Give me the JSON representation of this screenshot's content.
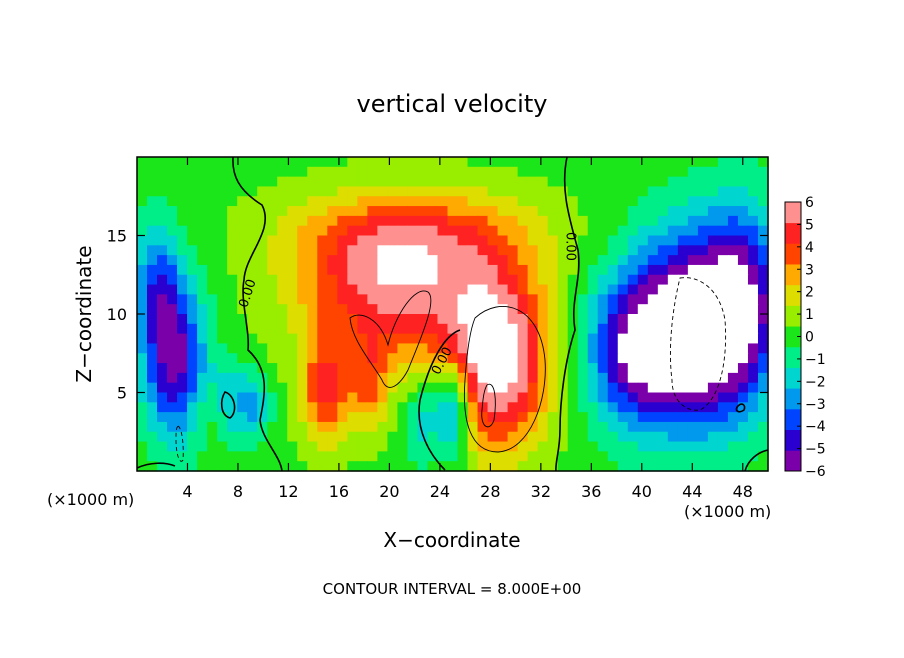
{
  "chart_data": {
    "type": "heatmap",
    "title": "vertical velocity",
    "xlabel": "X−coordinate",
    "ylabel": "Z−coordinate",
    "x_unit_left": "(×1000 m)",
    "x_unit_right": "(×1000 m)",
    "footer": "CONTOUR INTERVAL = 8.000E+00",
    "xlim": [
      0,
      50
    ],
    "ylim": [
      0,
      20
    ],
    "x_ticks": [
      4,
      8,
      12,
      16,
      20,
      24,
      28,
      32,
      36,
      40,
      44,
      48
    ],
    "y_ticks": [
      5,
      10,
      15
    ],
    "colorbar": {
      "range": [
        -6,
        6
      ],
      "tick_values": [
        6,
        5,
        4,
        3,
        2,
        1,
        0,
        -1,
        -2,
        -3,
        -4,
        -5,
        -6
      ],
      "tick_labels": [
        "6",
        "5",
        "4",
        "3",
        "2",
        "1",
        "0",
        "−1",
        "−2",
        "−3",
        "−4",
        "−5",
        "−6"
      ]
    },
    "contour_labels": [
      {
        "text": "0.00",
        "x": 8.8,
        "y": 11.3,
        "angle": -72
      },
      {
        "text": "0.00",
        "x": 34.3,
        "y": 14.3,
        "angle": 90
      },
      {
        "text": "0.00",
        "x": 24.2,
        "y": 7.0,
        "angle": -62
      }
    ],
    "field_features": [
      {
        "kind": "updraft",
        "x": 20.5,
        "y": 11.5,
        "sx": 7.5,
        "sy": 4.5,
        "amp": 5.5
      },
      {
        "kind": "updraft",
        "x": 28.5,
        "y": 7.0,
        "sx": 4.0,
        "sy": 5.5,
        "amp": 7.5
      },
      {
        "kind": "updraft",
        "x": 22.0,
        "y": 15.0,
        "sx": 10.0,
        "sy": 3.0,
        "amp": 3.0
      },
      {
        "kind": "updraft",
        "x": 15.0,
        "y": 5.0,
        "sx": 2.0,
        "sy": 3.5,
        "amp": 4.5
      },
      {
        "kind": "updraft",
        "x": 18.5,
        "y": 5.5,
        "sx": 1.5,
        "sy": 3.0,
        "amp": 3.0
      },
      {
        "kind": "downdraft",
        "x": 25.0,
        "y": 4.0,
        "sx": 1.5,
        "sy": 3.0,
        "amp": -5.0
      },
      {
        "kind": "downdraft",
        "x": 22.5,
        "y": 3.0,
        "sx": 1.2,
        "sy": 2.5,
        "amp": -2.5
      },
      {
        "kind": "downdraft",
        "x": 44.0,
        "y": 9.0,
        "sx": 5.0,
        "sy": 6.0,
        "amp": -9.0
      },
      {
        "kind": "downdraft",
        "x": 39.0,
        "y": 7.5,
        "sx": 3.5,
        "sy": 4.5,
        "amp": -4.5
      },
      {
        "kind": "downdraft",
        "x": 48.0,
        "y": 11.0,
        "sx": 3.0,
        "sy": 6.0,
        "amp": -4.5
      },
      {
        "kind": "downdraft",
        "x": 3.0,
        "y": 7.0,
        "sx": 2.5,
        "sy": 5.0,
        "amp": -6.0
      },
      {
        "kind": "downdraft",
        "x": 1.5,
        "y": 12.0,
        "sx": 2.0,
        "sy": 4.0,
        "amp": -3.5
      },
      {
        "kind": "downdraft",
        "x": 7.5,
        "y": 4.5,
        "sx": 1.5,
        "sy": 2.5,
        "amp": -2.5
      },
      {
        "kind": "downdraft",
        "x": 9.5,
        "y": 4.0,
        "sx": 1.2,
        "sy": 2.0,
        "amp": -2.5
      },
      {
        "kind": "updraft",
        "x": 5.5,
        "y": 4.0,
        "sx": 1.5,
        "sy": 2.0,
        "amp": 1.0
      }
    ],
    "grid": false,
    "legend": "right"
  }
}
